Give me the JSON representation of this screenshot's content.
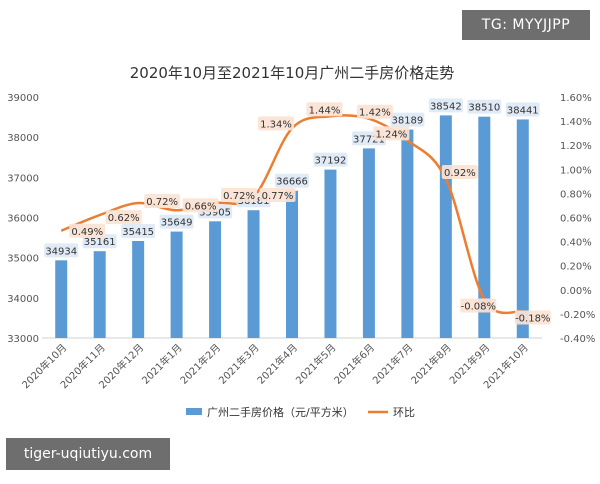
{
  "watermarks": {
    "top": "TG: MYYJJPP",
    "bottom": "tiger-uqiutiyu.com"
  },
  "chart_data": {
    "type": "bar",
    "title": "2020年10月至2021年10月广州二手房价格走势",
    "categories": [
      "2020年10月",
      "2020年11月",
      "2020年12月",
      "2021年1月",
      "2021年2月",
      "2021年3月",
      "2021年4月",
      "2021年5月",
      "2021年6月",
      "2021年7月",
      "2021年8月",
      "2021年9月",
      "2021年10月"
    ],
    "series": [
      {
        "name": "广州二手房价格（元/平方米）",
        "type": "bar",
        "axis": "left",
        "color": "#5b9bd5",
        "values": [
          34934,
          35161,
          35415,
          35649,
          35905,
          36181,
          36666,
          37192,
          37721,
          38189,
          38542,
          38510,
          38441
        ],
        "labels": [
          "34934",
          "35161",
          "35415",
          "35649",
          "35905",
          "36181",
          "36666",
          "37192",
          "37721",
          "38189",
          "38542",
          "38510",
          "38441"
        ]
      },
      {
        "name": "环比",
        "type": "line",
        "axis": "right",
        "color": "#ed7d31",
        "values": [
          0.49,
          0.62,
          0.72,
          0.66,
          0.72,
          0.77,
          1.34,
          1.44,
          1.42,
          1.24,
          0.92,
          -0.08,
          -0.18
        ],
        "labels": [
          "0.49%",
          "0.62%",
          "0.72%",
          "0.66%",
          "0.72%",
          "0.77%",
          "1.34%",
          "1.44%",
          "1.42%",
          "1.24%",
          "0.92%",
          "-0.08%",
          "-0.18%"
        ]
      }
    ],
    "y_left": {
      "range": [
        33000,
        39000
      ],
      "ticks": [
        "33000",
        "34000",
        "35000",
        "36000",
        "37000",
        "38000",
        "39000"
      ]
    },
    "y_right": {
      "range": [
        -0.4,
        1.6
      ],
      "ticks": [
        "-0.40%",
        "-0.20%",
        "0.00%",
        "0.20%",
        "0.40%",
        "0.60%",
        "0.80%",
        "1.00%",
        "1.20%",
        "1.40%",
        "1.60%"
      ]
    },
    "grid": false,
    "legend": "bottom"
  }
}
